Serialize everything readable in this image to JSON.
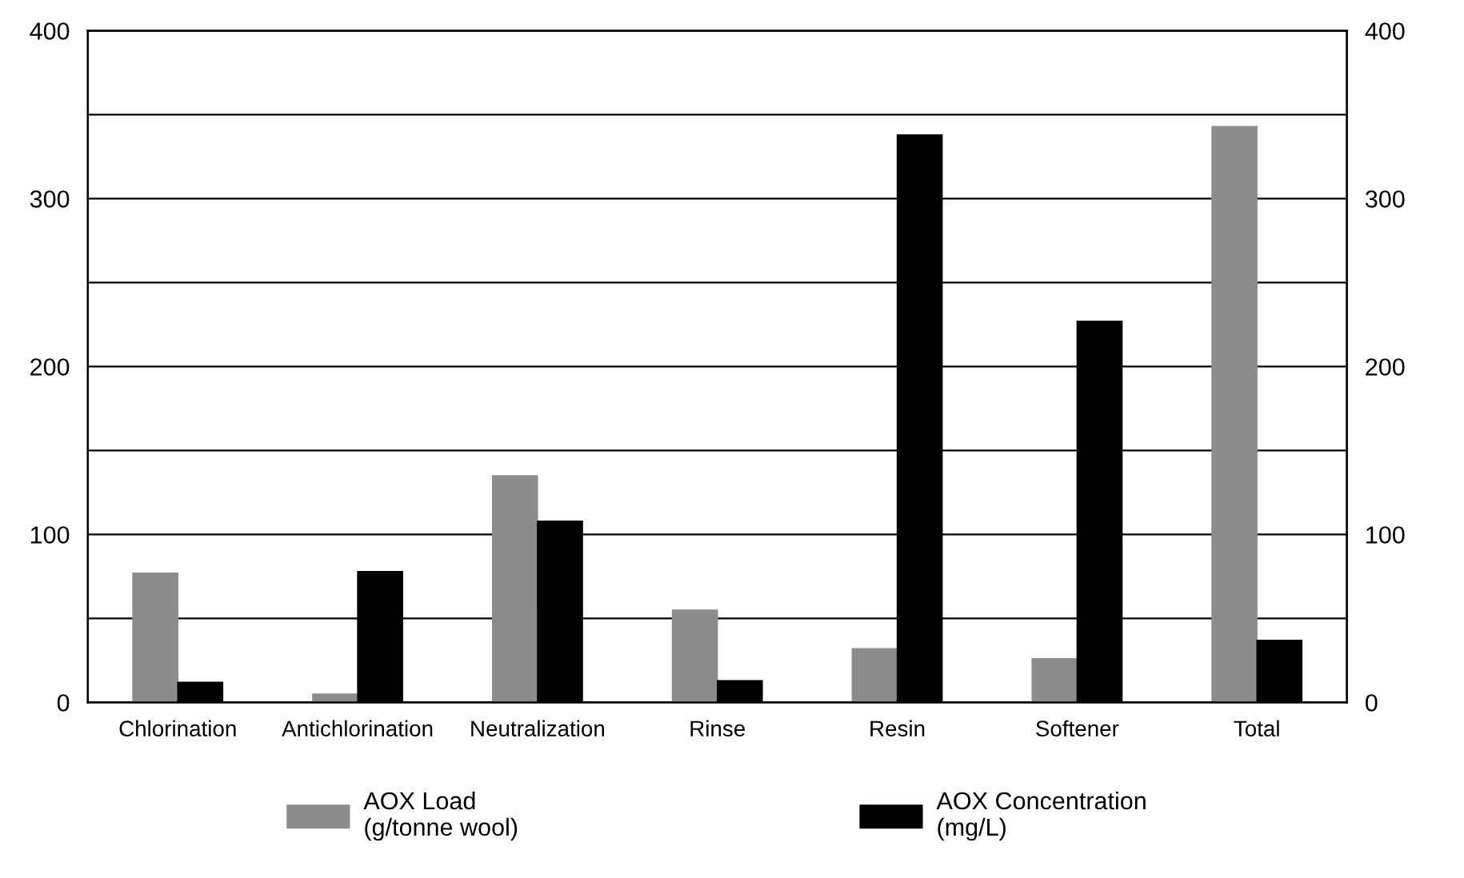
{
  "chart_data": {
    "type": "bar",
    "categories": [
      "Chlorination",
      "Antichlorination",
      "Neutralization",
      "Rinse",
      "Resin",
      "Softener",
      "Total"
    ],
    "series": [
      {
        "name": "AOX Load\n(g/tonne wool)",
        "color": "#8c8c8c",
        "values": [
          77,
          5,
          135,
          55,
          32,
          26,
          343
        ]
      },
      {
        "name": "AOX Concentration\n(mg/L)",
        "color": "#000000",
        "values": [
          12,
          78,
          108,
          13,
          338,
          227,
          37
        ]
      }
    ],
    "ylim": [
      0,
      400
    ],
    "yticks": [
      0,
      {
        "value": 50,
        "label": null
      },
      100,
      {
        "value": 150,
        "label": null
      },
      200,
      {
        "value": 250,
        "label": null
      },
      300,
      {
        "value": 350,
        "label": null
      },
      400
    ],
    "y2lim": [
      0,
      400
    ],
    "y2ticks": [
      0,
      100,
      200,
      300,
      400
    ],
    "grid": "y",
    "legend": "bottom"
  }
}
